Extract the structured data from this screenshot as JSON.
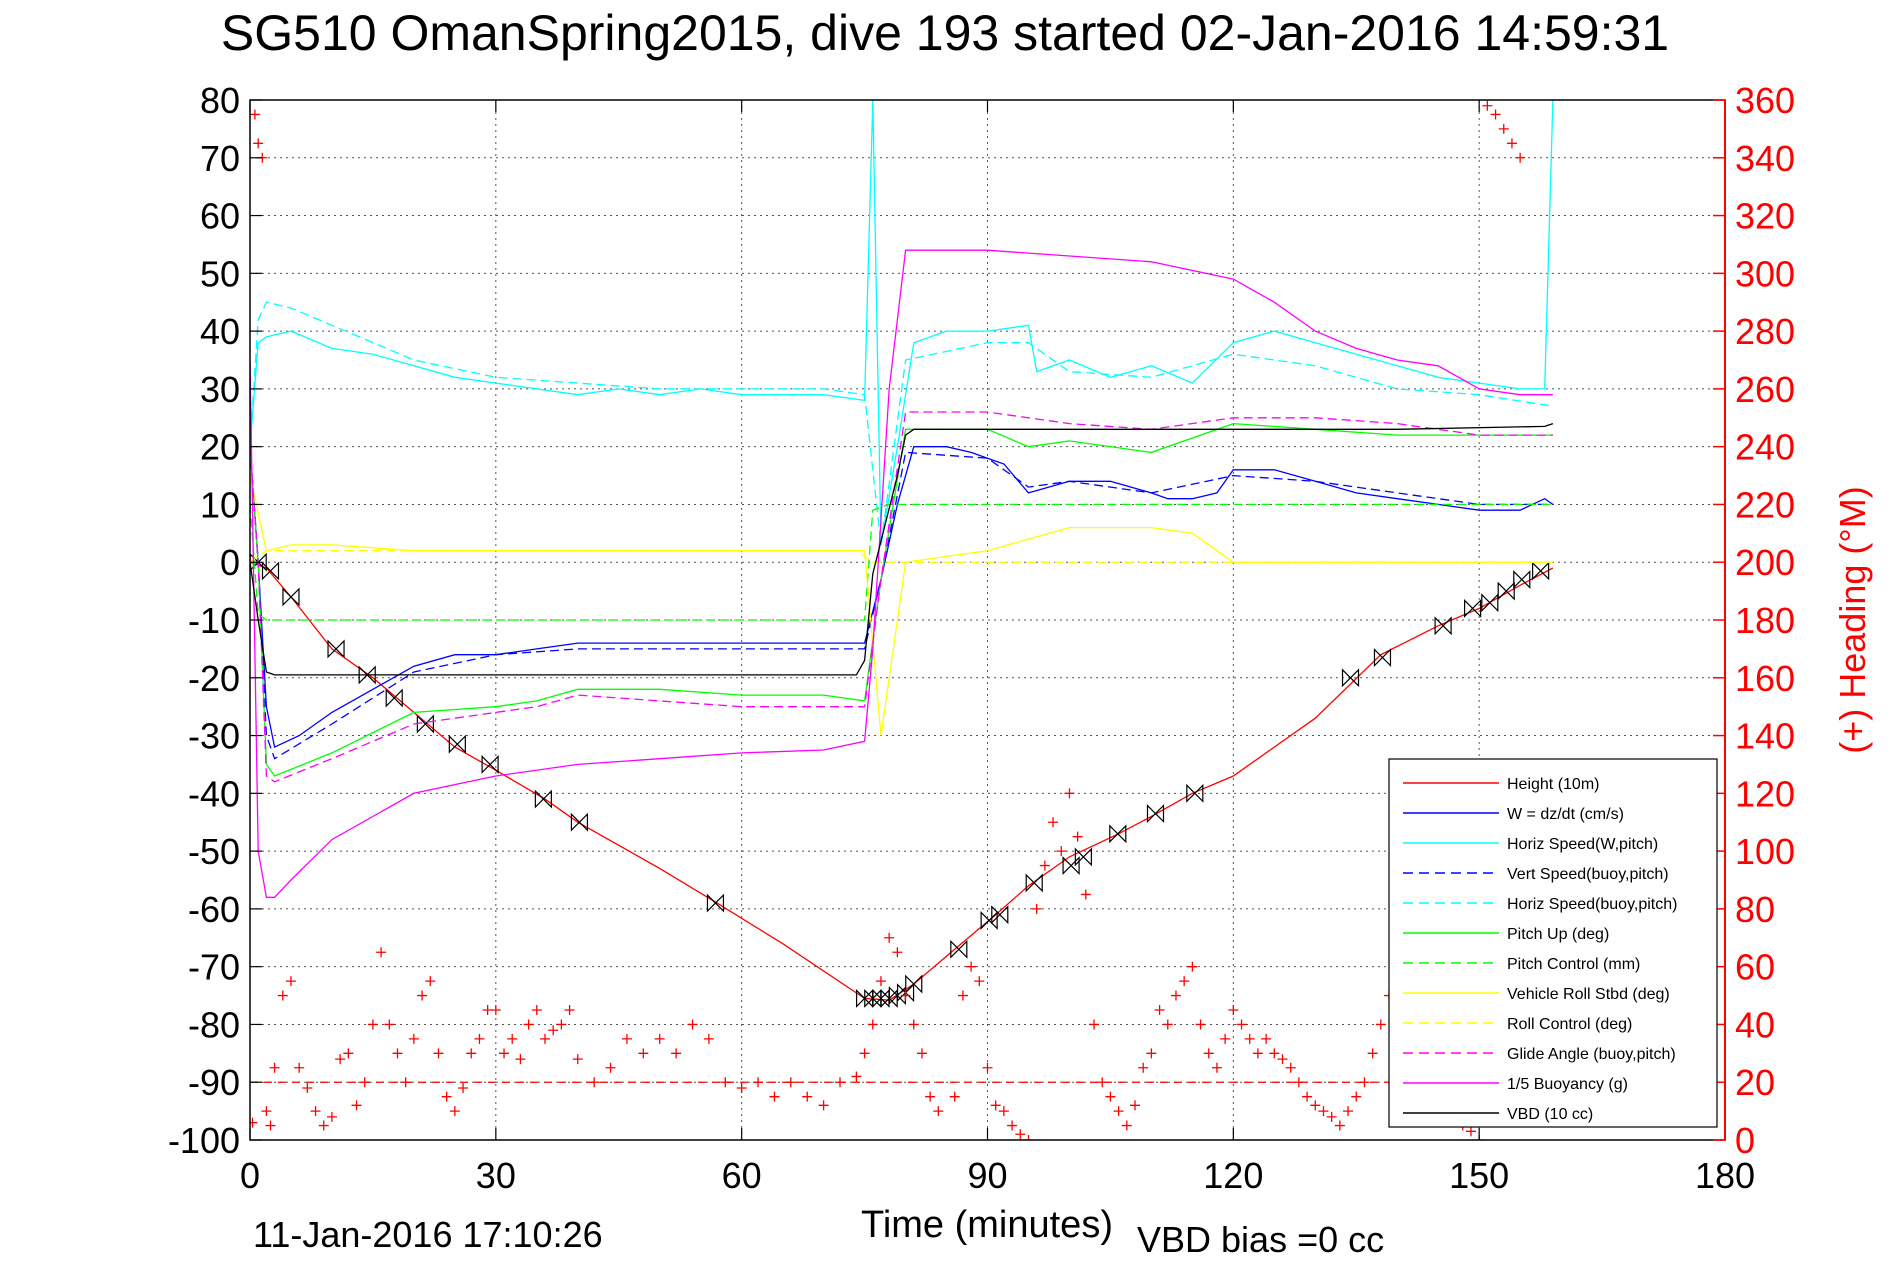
{
  "chart_data": {
    "type": "line",
    "title": "SG510 OmanSpring2015, dive 193 started 02-Jan-2016 14:59:31",
    "xlabel": "Time (minutes)",
    "ylabel_right": "(+) Heading (°M)",
    "footer_date": "11-Jan-2016 17:10:26",
    "footer_bias": "VBD bias =0 cc",
    "xlim": [
      0,
      180
    ],
    "ylim": [
      -100,
      80
    ],
    "ylim_right": [
      0,
      360
    ],
    "x_ticks": [
      0,
      30,
      60,
      90,
      120,
      150,
      180
    ],
    "y_ticks": [
      80,
      70,
      60,
      50,
      40,
      30,
      20,
      10,
      0,
      -10,
      -20,
      -30,
      -40,
      -50,
      -60,
      -70,
      -80,
      -90,
      -100
    ],
    "y_ticks_right": [
      360,
      340,
      320,
      300,
      280,
      260,
      240,
      220,
      200,
      180,
      160,
      140,
      120,
      100,
      80,
      60,
      40,
      20,
      0
    ],
    "grid": true,
    "legend_position": "bottom-right",
    "legend": [
      {
        "label": "Height (10m)",
        "color": "#ff0000",
        "dash": "solid"
      },
      {
        "label": "W = dz/dt (cm/s)",
        "color": "#0000ff",
        "dash": "solid"
      },
      {
        "label": "Horiz Speed(W,pitch)",
        "color": "#00ffff",
        "dash": "solid"
      },
      {
        "label": "Vert Speed(buoy,pitch)",
        "color": "#0000ff",
        "dash": "dashed"
      },
      {
        "label": "Horiz Speed(buoy,pitch)",
        "color": "#00ffff",
        "dash": "dashed"
      },
      {
        "label": "Pitch Up (deg)",
        "color": "#00ff00",
        "dash": "solid"
      },
      {
        "label": "Pitch Control (mm)",
        "color": "#00ff00",
        "dash": "dashed"
      },
      {
        "label": "Vehicle Roll Stbd (deg)",
        "color": "#ffff00",
        "dash": "solid"
      },
      {
        "label": "Roll Control (deg)",
        "color": "#ffff00",
        "dash": "dashed"
      },
      {
        "label": "Glide Angle (buoy,pitch)",
        "color": "#ff00ff",
        "dash": "dashed"
      },
      {
        "label": "1/5 Buoyancy (g)",
        "color": "#ff00ff",
        "dash": "solid"
      },
      {
        "label": "VBD (10 cc)",
        "color": "#000000",
        "dash": "solid"
      }
    ],
    "series": [
      {
        "name": "Height (10m)",
        "color": "#ff0000",
        "dash": "solid",
        "axis": "left",
        "x": [
          0,
          2,
          5,
          10,
          15,
          20,
          25,
          30,
          36,
          40,
          50,
          57,
          65,
          75,
          78,
          81,
          86,
          91,
          95,
          100,
          106,
          110,
          115,
          120,
          130,
          138,
          145,
          150,
          155,
          159
        ],
        "y": [
          0,
          -1,
          -6,
          -15,
          -20,
          -26,
          -32,
          -36,
          -41,
          -45,
          -53,
          -59,
          -66,
          -75.5,
          -75.8,
          -73,
          -67,
          -61,
          -56,
          -51,
          -47,
          -44,
          -40,
          -37,
          -27,
          -16,
          -11,
          -8,
          -4,
          -1
        ]
      },
      {
        "name": "Height markers",
        "color": "#000000",
        "dash": "none",
        "marker": "hourglass",
        "axis": "left",
        "x": [
          1,
          2.5,
          5,
          10.5,
          14.3,
          17.6,
          21.4,
          25.3,
          29.3,
          35.8,
          40.2,
          56.8,
          75,
          76,
          77,
          78,
          79,
          80,
          81,
          86.5,
          90.2,
          91.5,
          95.7,
          100.2,
          101.7,
          105.9,
          110.5,
          115.3,
          134.3,
          138.2,
          145.6,
          149.2,
          151.3,
          153.3,
          155.2,
          157.5
        ],
        "y": [
          0,
          -1.5,
          -6,
          -15,
          -19.5,
          -23.5,
          -28,
          -31.5,
          -35,
          -41,
          -45,
          -59,
          -75.5,
          -75.5,
          -75.5,
          -75.5,
          -75,
          -74.5,
          -73,
          -67,
          -62,
          -61,
          -55.5,
          -52.5,
          -51,
          -47,
          -43.5,
          -40,
          -20,
          -16.5,
          -11,
          -8,
          -7,
          -5,
          -3,
          -1.5
        ]
      },
      {
        "name": "W = dz/dt (cm/s)",
        "color": "#0000ff",
        "dash": "solid",
        "axis": "left",
        "x": [
          0,
          1,
          2,
          3,
          6,
          10,
          15,
          20,
          25,
          30,
          35,
          40,
          45,
          50,
          55,
          60,
          65,
          70,
          75,
          77,
          79,
          81,
          85,
          88,
          90,
          92,
          95,
          100,
          105,
          110,
          112,
          115,
          118,
          120,
          125,
          130,
          135,
          140,
          145,
          150,
          155,
          158,
          159
        ],
        "y": [
          20,
          0,
          -25,
          -32,
          -30,
          -26,
          -22,
          -18,
          -16,
          -16,
          -15,
          -14,
          -14,
          -14,
          -14,
          -14,
          -14,
          -14,
          -14,
          -3,
          10,
          20,
          20,
          19,
          18,
          17,
          12,
          14,
          14,
          12,
          11,
          11,
          12,
          16,
          16,
          14,
          12,
          11,
          10,
          9,
          9,
          11,
          10
        ]
      },
      {
        "name": "Horiz Speed(W,pitch)",
        "color": "#00ffff",
        "dash": "solid",
        "axis": "left",
        "x": [
          0,
          1,
          2,
          5,
          10,
          15,
          20,
          25,
          30,
          35,
          40,
          45,
          50,
          55,
          60,
          65,
          70,
          75,
          76,
          77,
          79,
          81,
          85,
          90,
          95,
          96,
          100,
          105,
          110,
          115,
          120,
          125,
          130,
          135,
          140,
          145,
          150,
          155,
          158,
          159
        ],
        "y": [
          20,
          38,
          39,
          40,
          37,
          36,
          34,
          32,
          31,
          30,
          29,
          30,
          29,
          30,
          29,
          29,
          29,
          28,
          80,
          3,
          20,
          38,
          40,
          40,
          41,
          33,
          35,
          32,
          34,
          31,
          38,
          40,
          38,
          36,
          34,
          32,
          31,
          30,
          30,
          80
        ]
      },
      {
        "name": "Vert Speed(buoy,pitch)",
        "color": "#0000ff",
        "dash": "dashed",
        "axis": "left",
        "x": [
          0,
          1,
          2,
          3,
          10,
          20,
          30,
          40,
          50,
          60,
          70,
          75,
          77,
          80,
          90,
          95,
          100,
          110,
          120,
          130,
          140,
          150,
          159
        ],
        "y": [
          20,
          0,
          -30,
          -34,
          -28,
          -19,
          -16,
          -15,
          -15,
          -15,
          -15,
          -15,
          -3,
          19,
          18,
          13,
          14,
          12,
          15,
          14,
          12,
          10,
          10
        ]
      },
      {
        "name": "Horiz Speed(buoy,pitch)",
        "color": "#00ffff",
        "dash": "dashed",
        "axis": "left",
        "x": [
          0,
          1,
          2,
          5,
          10,
          20,
          30,
          40,
          50,
          60,
          70,
          75,
          77,
          80,
          90,
          95,
          100,
          110,
          120,
          130,
          140,
          150,
          159
        ],
        "y": [
          20,
          42,
          45,
          44,
          41,
          35,
          32,
          31,
          30,
          30,
          30,
          29,
          3,
          35,
          38,
          38,
          33,
          32,
          36,
          34,
          30,
          29,
          27
        ]
      },
      {
        "name": "Pitch Up (deg)",
        "color": "#00ff00",
        "dash": "solid",
        "axis": "left",
        "x": [
          0,
          1,
          2,
          3,
          10,
          20,
          30,
          35,
          40,
          50,
          60,
          70,
          75,
          77,
          80,
          90,
          95,
          100,
          110,
          120,
          130,
          140,
          150,
          159
        ],
        "y": [
          20,
          0,
          -35,
          -37,
          -33,
          -26,
          -25,
          -24,
          -22,
          -22,
          -23,
          -23,
          -24,
          -3,
          23,
          23,
          20,
          21,
          19,
          24,
          23,
          22,
          22,
          22
        ]
      },
      {
        "name": "Pitch Control (mm)",
        "color": "#00ff00",
        "dash": "dashed",
        "axis": "left",
        "x": [
          0,
          1,
          2,
          10,
          30,
          50,
          74,
          75,
          76,
          78,
          90,
          110,
          130,
          150,
          159
        ],
        "y": [
          10,
          -9,
          -10,
          -10,
          -10,
          -10,
          -10,
          -10,
          9,
          10,
          10,
          10,
          10,
          10,
          10
        ]
      },
      {
        "name": "Vehicle Roll Stbd (deg)",
        "color": "#ffff00",
        "dash": "solid",
        "axis": "left",
        "x": [
          0,
          2,
          5,
          10,
          20,
          30,
          40,
          50,
          60,
          70,
          75,
          77,
          80,
          85,
          90,
          95,
          100,
          110,
          115,
          120,
          130,
          140,
          150,
          159
        ],
        "y": [
          15,
          2,
          3,
          3,
          2,
          2,
          2,
          2,
          2,
          2,
          2,
          -30,
          0,
          1,
          2,
          4,
          6,
          6,
          5,
          0,
          0,
          0,
          0,
          0
        ]
      },
      {
        "name": "Roll Control (deg)",
        "color": "#ffff00",
        "dash": "dashed",
        "axis": "left",
        "x": [
          0,
          2,
          30,
          60,
          74,
          76,
          80,
          100,
          120,
          140,
          159
        ],
        "y": [
          0,
          2,
          2,
          2,
          2,
          0,
          0,
          0,
          0,
          0,
          0
        ]
      },
      {
        "name": "Glide Angle (buoy,pitch)",
        "color": "#ff00ff",
        "dash": "dashed",
        "axis": "left",
        "x": [
          0,
          1,
          2,
          3,
          10,
          20,
          30,
          35,
          40,
          50,
          60,
          70,
          75,
          77,
          80,
          90,
          95,
          100,
          110,
          120,
          130,
          140,
          150,
          159
        ],
        "y": [
          20,
          0,
          -37,
          -38,
          -34,
          -28,
          -26,
          -25,
          -23,
          -24,
          -25,
          -25,
          -25,
          -3,
          26,
          26,
          25,
          24,
          23,
          25,
          25,
          24,
          22,
          22
        ]
      },
      {
        "name": "1/5 Buoyancy (g)",
        "color": "#ff00ff",
        "dash": "solid",
        "axis": "left",
        "x": [
          0,
          1,
          2,
          3,
          5,
          10,
          20,
          30,
          40,
          50,
          60,
          70,
          75,
          76,
          78,
          80,
          90,
          100,
          110,
          120,
          125,
          130,
          135,
          140,
          145,
          150,
          155,
          159
        ],
        "y": [
          35,
          -50,
          -58,
          -58,
          -55,
          -48,
          -40,
          -37,
          -35,
          -34,
          -33,
          -32.5,
          -31,
          -15,
          30,
          54,
          54,
          53,
          52,
          49,
          45,
          40,
          37,
          35,
          34,
          30,
          29,
          29
        ]
      },
      {
        "name": "VBD (10 cc)",
        "color": "#000000",
        "dash": "solid",
        "axis": "left",
        "x": [
          0,
          1,
          2,
          3,
          30,
          60,
          74,
          75,
          76,
          79,
          80,
          81,
          95,
          110,
          140,
          158,
          159
        ],
        "y": [
          0,
          -10,
          -19,
          -19.5,
          -19.5,
          -19.5,
          -19.5,
          -17,
          -2,
          15,
          22,
          23,
          23,
          23,
          23,
          23.5,
          24
        ]
      },
      {
        "name": "(+) Heading (°M)",
        "color": "#ff0000",
        "dash": "none",
        "marker": "plus",
        "axis": "right",
        "x": [
          0.3,
          0.6,
          1,
          1.5,
          2,
          2.5,
          3,
          4,
          5,
          6,
          7,
          8,
          9,
          10,
          11,
          12,
          13,
          14,
          15,
          16,
          17,
          18,
          19,
          20,
          21,
          22,
          23,
          24,
          25,
          26,
          27,
          28,
          29,
          30,
          31,
          32,
          33,
          34,
          35,
          36,
          37,
          38,
          39,
          40,
          42,
          44,
          46,
          48,
          50,
          52,
          54,
          56,
          58,
          60,
          62,
          64,
          66,
          68,
          70,
          72,
          74,
          75,
          76,
          77,
          78,
          79,
          80,
          81,
          82,
          83,
          84,
          86,
          87,
          88,
          89,
          90,
          91,
          92,
          93,
          94,
          95,
          96,
          97,
          98,
          99,
          100,
          101,
          102,
          103,
          104,
          105,
          106,
          107,
          108,
          109,
          110,
          111,
          112,
          113,
          114,
          115,
          116,
          117,
          118,
          119,
          120,
          121,
          122,
          123,
          124,
          125,
          126,
          127,
          128,
          129,
          130,
          131,
          132,
          133,
          134,
          135,
          136,
          137,
          138,
          139,
          140,
          141,
          142,
          143,
          144,
          145,
          146,
          147,
          148,
          149,
          150,
          151,
          152,
          153,
          154,
          155
        ],
        "y": [
          6,
          355,
          345,
          340,
          10,
          5,
          25,
          50,
          55,
          25,
          18,
          10,
          5,
          8,
          28,
          30,
          12,
          20,
          40,
          65,
          40,
          30,
          20,
          35,
          50,
          55,
          30,
          15,
          10,
          18,
          30,
          35,
          45,
          45,
          30,
          35,
          28,
          40,
          45,
          35,
          38,
          40,
          45,
          28,
          20,
          25,
          35,
          30,
          35,
          30,
          40,
          35,
          20,
          18,
          20,
          15,
          20,
          15,
          12,
          20,
          22,
          30,
          40,
          55,
          70,
          65,
          50,
          40,
          30,
          15,
          10,
          15,
          50,
          60,
          55,
          25,
          12,
          10,
          5,
          2,
          0,
          80,
          95,
          110,
          100,
          120,
          105,
          85,
          40,
          20,
          15,
          10,
          5,
          12,
          25,
          30,
          45,
          40,
          50,
          55,
          60,
          40,
          30,
          25,
          35,
          45,
          40,
          35,
          30,
          35,
          30,
          28,
          25,
          20,
          15,
          12,
          10,
          8,
          5,
          10,
          15,
          20,
          30,
          40,
          50,
          55,
          60,
          10,
          15,
          20,
          30,
          20,
          10,
          5,
          3,
          0,
          358,
          355,
          350,
          345,
          340
        ]
      }
    ]
  }
}
